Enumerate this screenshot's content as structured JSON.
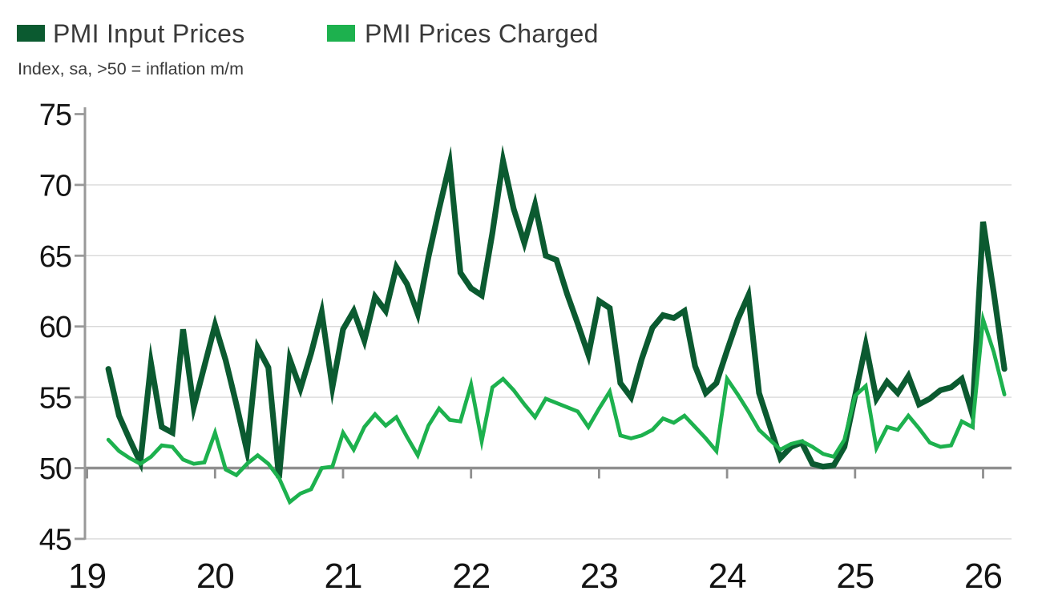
{
  "legend": {
    "series1_label": "PMI Input Prices",
    "series2_label": "PMI Prices Charged"
  },
  "subtitle": "Index, sa, >50 = inflation m/m",
  "colors": {
    "input_prices": "#0b5a30",
    "prices_charged": "#1db14e",
    "gridline": "#d9d9d9",
    "axis": "#999999",
    "baseline_50": "#8f8f8f",
    "tick_label": "#141414",
    "title_text": "#3a3a3a"
  },
  "chart_data": {
    "type": "line",
    "title": "",
    "subtitle": "Index, sa, >50 = inflation m/m",
    "frequency": "monthly",
    "x_start": "2019-03",
    "x_end": "2026-03",
    "x_tick_labels": [
      "19",
      "20",
      "21",
      "22",
      "23",
      "24",
      "25",
      "26"
    ],
    "y_ticks": [
      45,
      50,
      55,
      60,
      65,
      70,
      75
    ],
    "ylim": [
      45,
      75
    ],
    "baseline_value": 50,
    "grid": "horizontal-only",
    "legend_position": "top-left",
    "series": [
      {
        "name": "PMI Input Prices",
        "color": "#0b5a30",
        "values": [
          57.0,
          53.7,
          52.0,
          50.4,
          57.4,
          52.9,
          52.5,
          59.8,
          54.3,
          57.2,
          60.1,
          57.6,
          54.5,
          51.2,
          58.5,
          57.1,
          49.3,
          57.7,
          55.6,
          58.1,
          61.0,
          55.7,
          59.8,
          61.1,
          59.0,
          62.1,
          61.1,
          64.2,
          63.0,
          60.9,
          64.9,
          68.3,
          71.5,
          63.8,
          62.7,
          62.2,
          66.6,
          71.7,
          68.3,
          65.9,
          68.6,
          65.0,
          64.7,
          62.3,
          60.2,
          58.0,
          61.8,
          61.3,
          56.0,
          55.0,
          57.7,
          59.9,
          60.8,
          60.6,
          61.1,
          57.2,
          55.3,
          56.0,
          58.3,
          60.5,
          62.2,
          55.3,
          53.0,
          50.7,
          51.5,
          51.8,
          50.3,
          50.1,
          50.2,
          51.5,
          55.1,
          58.7,
          54.9,
          56.1,
          55.3,
          56.5,
          54.5,
          54.9,
          55.5,
          55.7,
          56.3,
          53.8,
          67.4,
          62.4,
          57.0
        ]
      },
      {
        "name": "PMI Prices Charged",
        "color": "#1db14e",
        "values": [
          52.0,
          51.2,
          50.7,
          50.3,
          50.8,
          51.6,
          51.5,
          50.6,
          50.3,
          50.4,
          52.5,
          49.9,
          49.5,
          50.3,
          50.9,
          50.3,
          49.3,
          47.6,
          48.2,
          48.5,
          50.0,
          50.1,
          52.5,
          51.3,
          52.9,
          53.8,
          53.0,
          53.6,
          52.2,
          50.9,
          53.0,
          54.2,
          53.4,
          53.3,
          55.9,
          51.9,
          55.7,
          56.3,
          55.5,
          54.5,
          53.6,
          54.9,
          54.6,
          54.3,
          54.0,
          52.9,
          54.2,
          55.4,
          52.3,
          52.1,
          52.3,
          52.7,
          53.5,
          53.2,
          53.7,
          52.9,
          52.1,
          51.2,
          56.3,
          55.2,
          54.0,
          52.7,
          52.0,
          51.3,
          51.7,
          51.9,
          51.5,
          51.0,
          50.8,
          52.0,
          55.1,
          55.8,
          51.4,
          52.9,
          52.7,
          53.7,
          52.8,
          51.8,
          51.5,
          51.6,
          53.3,
          52.9,
          60.5,
          58.2,
          55.2
        ]
      }
    ]
  }
}
